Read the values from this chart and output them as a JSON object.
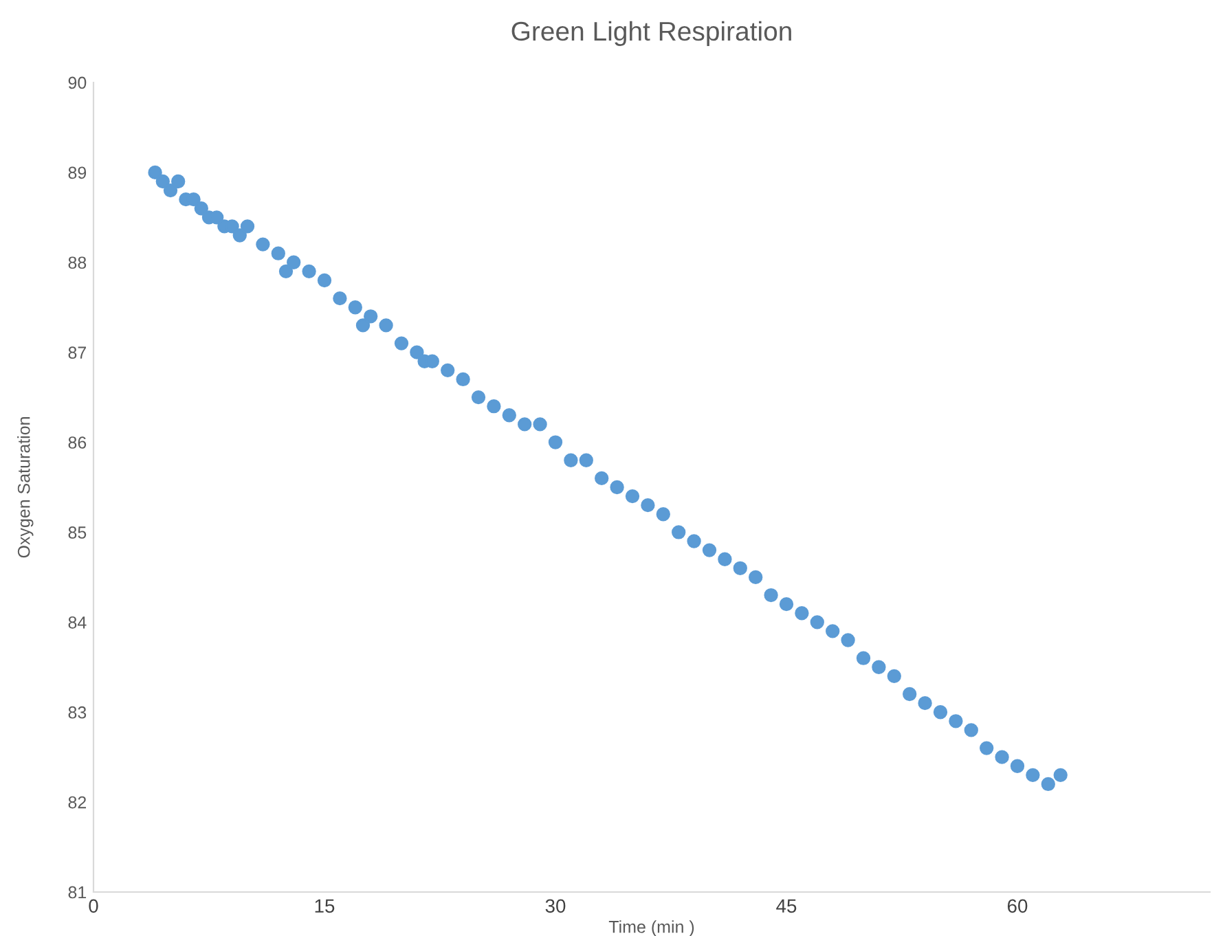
{
  "chart_data": {
    "type": "scatter",
    "title": "Green Light Respiration",
    "xlabel": "Time (min )",
    "ylabel": "Oxygen Saturation",
    "xlim": [
      0,
      72.5
    ],
    "ylim": [
      81,
      90
    ],
    "xticks": [
      0,
      15,
      30,
      45,
      60
    ],
    "yticks": [
      81,
      82,
      83,
      84,
      85,
      86,
      87,
      88,
      89,
      90
    ],
    "grid": false,
    "marker": "circle",
    "series": [
      {
        "color": "#5b9bd5",
        "x": [
          4.0,
          4.5,
          5.0,
          5.5,
          6.0,
          6.5,
          7.0,
          7.5,
          8.0,
          8.5,
          9.0,
          9.5,
          10,
          11,
          12,
          12.5,
          13,
          14,
          15,
          16,
          17,
          17.5,
          18,
          19,
          20,
          21,
          21.5,
          22,
          23,
          24,
          25,
          26,
          27,
          28,
          29,
          30,
          31,
          32,
          33,
          34,
          35,
          36,
          37,
          38,
          39,
          40,
          41,
          42,
          43,
          44,
          45,
          46,
          47,
          48,
          49,
          50,
          51,
          52,
          53,
          54,
          55,
          56,
          57,
          58,
          59,
          60,
          61,
          62,
          62.8
        ],
        "values": [
          89.0,
          88.9,
          88.8,
          88.9,
          88.7,
          88.7,
          88.6,
          88.5,
          88.5,
          88.4,
          88.4,
          88.3,
          88.4,
          88.2,
          88.1,
          87.9,
          88.0,
          87.9,
          87.8,
          87.6,
          87.5,
          87.3,
          87.4,
          87.3,
          87.1,
          87.0,
          86.9,
          86.9,
          86.8,
          86.7,
          86.5,
          86.4,
          86.3,
          86.2,
          86.2,
          86.0,
          85.8,
          85.8,
          85.6,
          85.5,
          85.4,
          85.3,
          85.2,
          85.0,
          84.9,
          84.8,
          84.7,
          84.6,
          84.5,
          84.3,
          84.2,
          84.1,
          84.0,
          83.9,
          83.8,
          83.6,
          83.5,
          83.4,
          83.2,
          83.1,
          83.0,
          82.9,
          82.8,
          82.6,
          82.5,
          82.4,
          82.3,
          82.2,
          82.3
        ]
      }
    ]
  }
}
